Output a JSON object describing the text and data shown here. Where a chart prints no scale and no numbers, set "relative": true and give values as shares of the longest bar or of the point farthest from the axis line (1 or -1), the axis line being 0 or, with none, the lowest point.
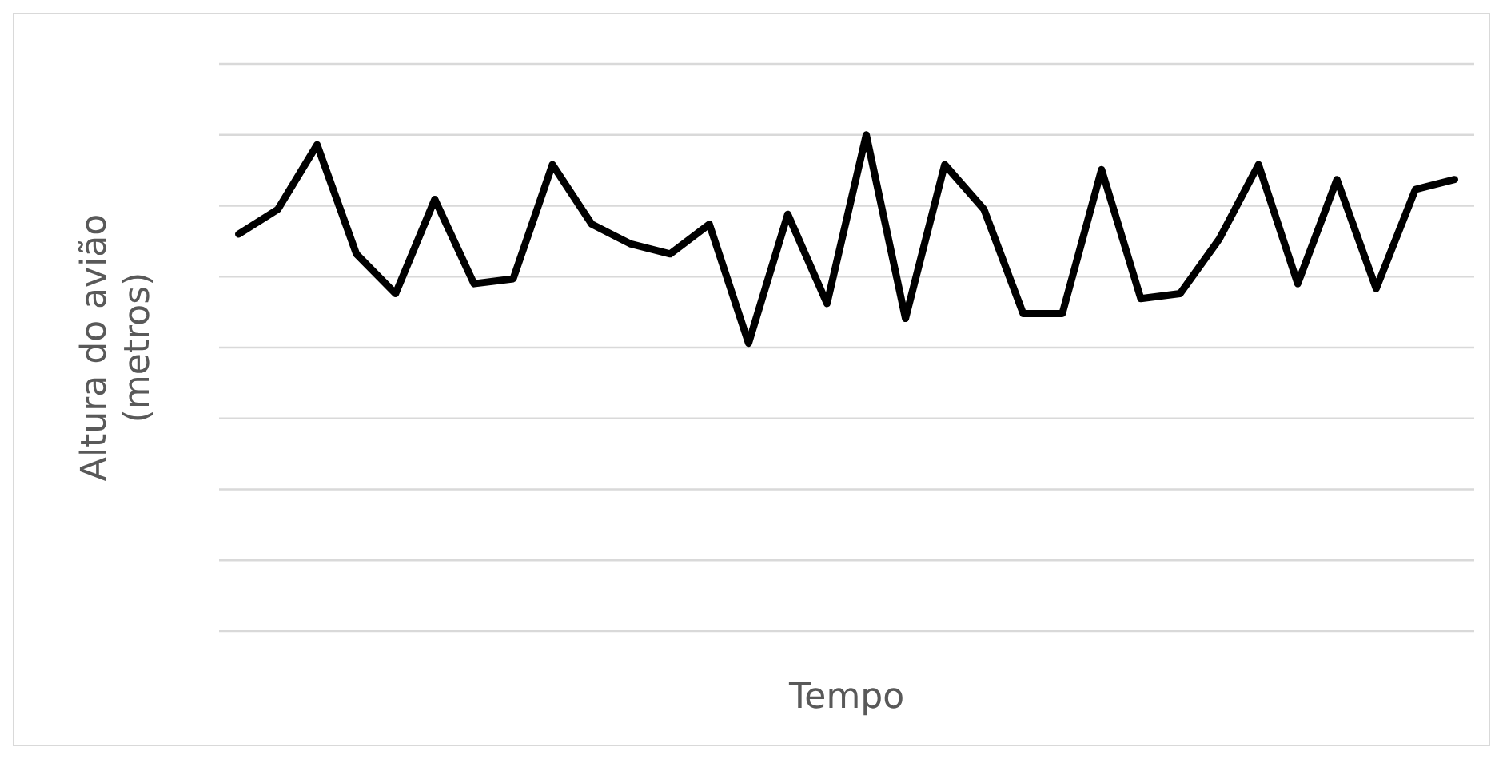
{
  "chart_data": {
    "type": "line",
    "relative": true,
    "xlabel": "Tempo",
    "ylabel": "Altura do avião\n(metros)",
    "grid": "y",
    "marker": "none",
    "line_style": "solid",
    "categories": [
      null,
      null,
      null,
      null,
      null,
      null,
      null,
      null,
      null,
      null,
      null,
      null,
      null,
      null,
      null,
      null,
      null,
      null,
      null,
      null,
      null,
      null,
      null,
      null,
      null,
      null,
      null,
      null,
      null,
      null,
      null,
      null
    ],
    "series": [
      {
        "color": "#000000",
        "values": [
          0.8,
          0.85,
          0.98,
          0.76,
          0.68,
          0.87,
          0.7,
          0.71,
          0.94,
          0.82,
          0.78,
          0.76,
          0.82,
          0.58,
          0.84,
          0.66,
          1,
          0.63,
          0.94,
          0.85,
          0.64,
          0.64,
          0.93,
          0.67,
          0.68,
          0.79,
          0.94,
          0.7,
          0.91,
          0.69,
          0.89,
          0.91
        ]
      }
    ]
  }
}
